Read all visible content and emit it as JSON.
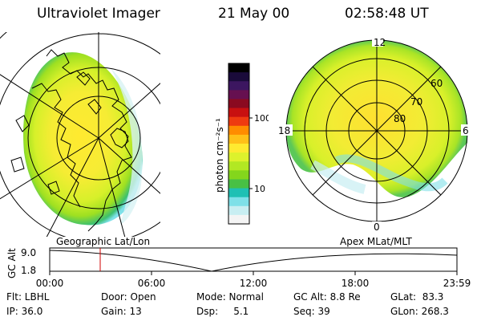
{
  "header": {
    "instrument": "Ultraviolet Imager",
    "date": "21 May 00",
    "time": "02:58:48 UT"
  },
  "colorbar": {
    "unit": "photon cm⁻²s⁻¹",
    "ticks": [
      "100",
      "10"
    ],
    "colors": [
      "#000000",
      "#1a0b3a",
      "#3c1660",
      "#661050",
      "#8a0a20",
      "#c81010",
      "#ee3a10",
      "#ff8c00",
      "#ffc018",
      "#ffea30",
      "#ddf22c",
      "#b2e823",
      "#84d61c",
      "#48c044",
      "#1fc0b4",
      "#7ee0e8",
      "#c8eef2",
      "#f4f4f4"
    ]
  },
  "left_map": {
    "label": "Geographic Lat/Lon"
  },
  "right_map": {
    "label": "Apex MLat/MLT",
    "mlt_labels": [
      "12",
      "18",
      "6",
      "0"
    ],
    "lat_labels": [
      "60",
      "70",
      "80"
    ]
  },
  "timeline": {
    "axis_label": "GC Alt",
    "y_ticks": [
      "9.0",
      "1.8"
    ],
    "x_ticks": [
      "00:00",
      "06:00",
      "12:00",
      "18:00",
      "23:59"
    ],
    "current_time_fraction": 0.124
  },
  "info": {
    "filter": "Flt: LBHL",
    "ip": "IP: 36.0",
    "door": "Door: Open",
    "gain": "Gain: 13",
    "mode": "Mode: Normal",
    "dsp": "Dsp:     5.1",
    "gc_alt": "GC Alt: 8.8 Re",
    "seq": "Seq: 39",
    "glat": "GLat:  83.3",
    "glon": "GLon: 268.3"
  }
}
